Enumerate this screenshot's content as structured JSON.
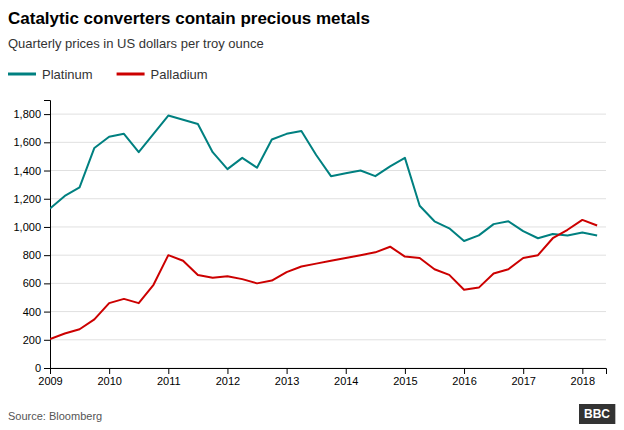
{
  "chart_data": {
    "type": "line",
    "title": "Catalytic converters contain precious metals",
    "subtitle": "Quarterly prices in US dollars per troy ounce",
    "source": "Source: Bloomberg",
    "annotations": [
      "BBC"
    ],
    "x": [
      2009.0,
      2009.25,
      2009.5,
      2009.75,
      2010.0,
      2010.25,
      2010.5,
      2010.75,
      2011.0,
      2011.25,
      2011.5,
      2011.75,
      2012.0,
      2012.25,
      2012.5,
      2012.75,
      2013.0,
      2013.25,
      2013.5,
      2013.75,
      2014.0,
      2014.25,
      2014.5,
      2014.75,
      2015.0,
      2015.25,
      2015.5,
      2015.75,
      2016.0,
      2016.25,
      2016.5,
      2016.75,
      2017.0,
      2017.25,
      2017.5,
      2017.75,
      2018.0,
      2018.25
    ],
    "series": [
      {
        "name": "Platinum",
        "color": "#008080",
        "values": [
          1130,
          1220,
          1280,
          1560,
          1640,
          1660,
          1530,
          1660,
          1790,
          1760,
          1730,
          1530,
          1410,
          1490,
          1420,
          1620,
          1660,
          1680,
          1510,
          1360,
          1380,
          1400,
          1360,
          1430,
          1490,
          1150,
          1040,
          990,
          900,
          940,
          1020,
          1040,
          970,
          920,
          950,
          940,
          960,
          940
        ]
      },
      {
        "name": "Palladium",
        "color": "#CC0000",
        "values": [
          205,
          245,
          275,
          345,
          460,
          490,
          460,
          590,
          800,
          760,
          660,
          640,
          650,
          630,
          600,
          620,
          680,
          720,
          740,
          760,
          780,
          800,
          820,
          860,
          790,
          780,
          700,
          660,
          555,
          570,
          670,
          700,
          780,
          800,
          920,
          980,
          1050,
          1010
        ]
      }
    ],
    "xlim": [
      2009,
      2018.4
    ],
    "xticks": [
      2009,
      2010,
      2011,
      2012,
      2013,
      2014,
      2015,
      2016,
      2017,
      2018
    ],
    "ylim": [
      0,
      1900
    ],
    "yticks": [
      0,
      200,
      400,
      600,
      800,
      {
        "value": 1000,
        "label": "1,000"
      },
      {
        "value": 1200,
        "label": "1,200"
      },
      {
        "value": 1400,
        "label": "1,400"
      },
      {
        "value": 1600,
        "label": "1,600"
      },
      {
        "value": 1800,
        "label": "1,800"
      }
    ],
    "grid": true,
    "legend": "top-left"
  }
}
